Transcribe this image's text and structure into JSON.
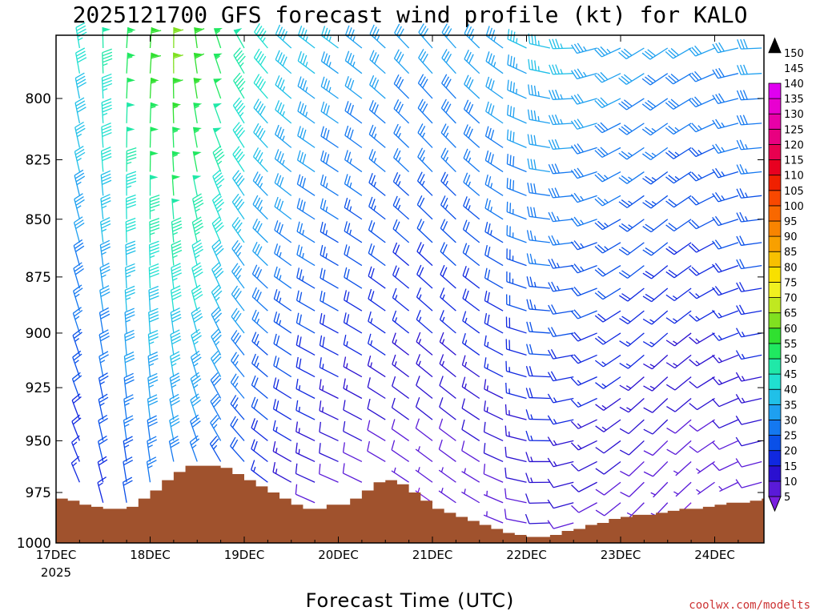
{
  "title": "2025121700 GFS forecast wind profile (kt) for KALO",
  "xlabel": "Forecast Time (UTC)",
  "credit": "coolwx.com/modelts",
  "credit_color": "#cc3333",
  "terrain_color": "#a0522d",
  "chart_data": {
    "type": "wind-barb time-height section",
    "y_axis": {
      "ticks": [
        "800",
        "825",
        "850",
        "875",
        "900",
        "925",
        "950",
        "975",
        "1000"
      ],
      "ylim": [
        1000,
        775
      ],
      "unit": "hPa"
    },
    "x_axis": {
      "ticks": [
        "17DEC",
        "18DEC",
        "19DEC",
        "20DEC",
        "21DEC",
        "22DEC",
        "23DEC",
        "24DEC"
      ],
      "first_tick_year": "2025",
      "xlim_hours": [
        0,
        180
      ]
    },
    "colorbar": {
      "unit": "kt",
      "ticks": [
        5,
        10,
        15,
        20,
        25,
        30,
        35,
        40,
        45,
        50,
        55,
        60,
        65,
        70,
        75,
        80,
        85,
        90,
        95,
        100,
        105,
        110,
        115,
        120,
        125,
        130,
        135,
        140,
        145,
        150
      ],
      "colors": [
        "#7a1fe0",
        "#5a1ad8",
        "#2a10d0",
        "#1028e0",
        "#0a50e8",
        "#1478f0",
        "#1ea0f0",
        "#20c0e8",
        "#20e0d0",
        "#20e8a8",
        "#20e860",
        "#30e030",
        "#80e020",
        "#c0e820",
        "#f0f020",
        "#f8e000",
        "#f8c000",
        "#f8a000",
        "#f88400",
        "#f86800",
        "#f84800",
        "#f02000",
        "#e80020",
        "#e80050",
        "#e80080",
        "#e800a8",
        "#e800d0",
        "#e000f0",
        "#000000"
      ]
    },
    "terrain_pressure": [
      [
        0,
        978
      ],
      [
        3,
        979
      ],
      [
        6,
        981
      ],
      [
        9,
        982
      ],
      [
        12,
        983
      ],
      [
        15,
        983
      ],
      [
        18,
        982
      ],
      [
        21,
        978
      ],
      [
        24,
        974
      ],
      [
        27,
        969
      ],
      [
        30,
        965
      ],
      [
        33,
        962
      ],
      [
        36,
        962
      ],
      [
        39,
        962
      ],
      [
        42,
        963
      ],
      [
        45,
        966
      ],
      [
        48,
        969
      ],
      [
        51,
        972
      ],
      [
        54,
        975
      ],
      [
        57,
        978
      ],
      [
        60,
        981
      ],
      [
        63,
        983
      ],
      [
        66,
        983
      ],
      [
        69,
        981
      ],
      [
        72,
        981
      ],
      [
        75,
        978
      ],
      [
        78,
        974
      ],
      [
        81,
        970
      ],
      [
        84,
        969
      ],
      [
        87,
        971
      ],
      [
        90,
        975
      ],
      [
        93,
        979
      ],
      [
        96,
        983
      ],
      [
        99,
        985
      ],
      [
        102,
        987
      ],
      [
        105,
        989
      ],
      [
        108,
        991
      ],
      [
        111,
        993
      ],
      [
        114,
        995
      ],
      [
        117,
        996
      ],
      [
        120,
        997
      ],
      [
        123,
        997
      ],
      [
        126,
        996
      ],
      [
        129,
        994
      ],
      [
        132,
        993
      ],
      [
        135,
        991
      ],
      [
        138,
        990
      ],
      [
        141,
        988
      ],
      [
        144,
        987
      ],
      [
        147,
        986
      ],
      [
        150,
        986
      ],
      [
        153,
        985
      ],
      [
        156,
        984
      ],
      [
        159,
        983
      ],
      [
        162,
        983
      ],
      [
        165,
        982
      ],
      [
        168,
        981
      ],
      [
        171,
        980
      ],
      [
        174,
        980
      ],
      [
        177,
        979
      ],
      [
        180,
        978
      ]
    ],
    "wind_levels_hPa": [
      780,
      790,
      800,
      810,
      820,
      830,
      840,
      850,
      860,
      870,
      880,
      890,
      900,
      910,
      920,
      930,
      940,
      950,
      960,
      970,
      980,
      990
    ],
    "wind_times_h": [
      0,
      6,
      12,
      18,
      24,
      30,
      36,
      42,
      48,
      54,
      60,
      66,
      72,
      78,
      84,
      90,
      96,
      102,
      108,
      114,
      120,
      126,
      132,
      138,
      144,
      150,
      156,
      162,
      168,
      174,
      180
    ]
  }
}
